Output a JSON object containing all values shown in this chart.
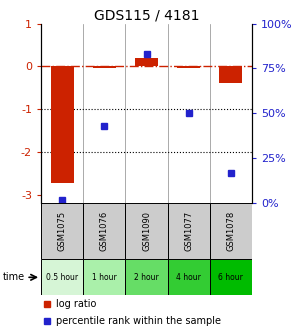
{
  "title": "GDS115 / 4181",
  "samples": [
    "GSM1075",
    "GSM1076",
    "GSM1090",
    "GSM1077",
    "GSM1078"
  ],
  "time_labels": [
    "0.5 hour",
    "1 hour",
    "2 hour",
    "4 hour",
    "6 hour"
  ],
  "time_colors": [
    "#d6f5d6",
    "#aaf0aa",
    "#66dd66",
    "#33cc33",
    "#00bb00"
  ],
  "log_ratios": [
    -2.72,
    -0.05,
    0.2,
    -0.05,
    -0.4
  ],
  "percentile_ranks": [
    2,
    43,
    83,
    50,
    17
  ],
  "ylim_left": [
    -3.2,
    1.0
  ],
  "ylim_right": [
    0,
    100
  ],
  "left_ticks": [
    1,
    0,
    -1,
    -2,
    -3
  ],
  "right_ticks": [
    100,
    75,
    50,
    25,
    0
  ],
  "bar_color": "#cc2200",
  "square_color": "#2222cc",
  "zero_line_color": "#cc2200",
  "grid_color": "#000000",
  "bg_color": "#ffffff",
  "sample_bg": "#cccccc",
  "legend_bar_label": "log ratio",
  "legend_sq_label": "percentile rank within the sample"
}
